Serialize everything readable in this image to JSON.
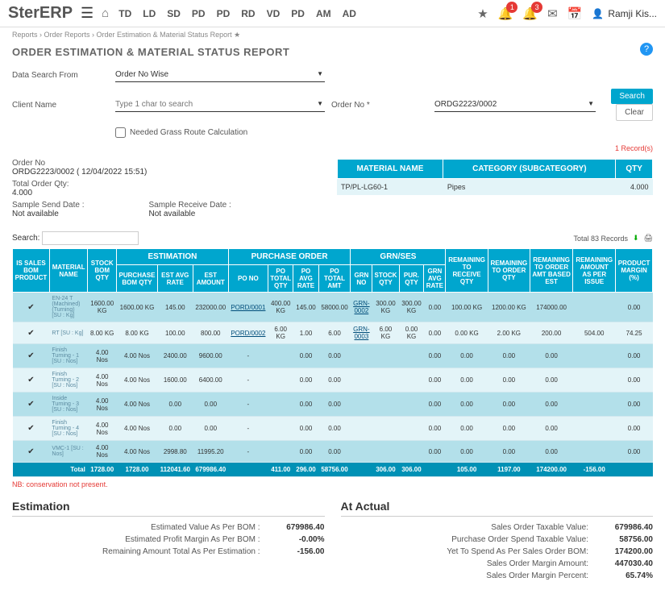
{
  "header": {
    "logo": "SterERP",
    "nav": [
      "TD",
      "LD",
      "SD",
      "PD",
      "PD",
      "RD",
      "VD",
      "PD",
      "AM",
      "AD"
    ],
    "badge1": "1",
    "badge3": "3",
    "user": "Ramji Kis..."
  },
  "breadcrumb": {
    "a": "Reports",
    "b": "Order Reports",
    "c": "Order Estimation & Material Status Report"
  },
  "title": "ORDER ESTIMATION & MATERIAL STATUS REPORT",
  "filters": {
    "searchFromLabel": "Data Search From",
    "searchFrom": "Order No Wise",
    "clientLabel": "Client Name",
    "clientPlaceholder": "Type 1 char to search",
    "orderNoLabel": "Order No *",
    "orderNo": "ORDG2223/0002",
    "checkbox": "Needed Grass Route Calculation",
    "searchBtn": "Search",
    "clearBtn": "Clear"
  },
  "info": {
    "orderNoLabel": "Order No",
    "orderNo": "ORDG2223/0002 ( 12/04/2022 15:51)",
    "totalQtyLabel": "Total Order Qty:",
    "totalQty": "4.000",
    "sendDateLabel": "Sample Send Date :",
    "sendDate": "Not available",
    "recvDateLabel": "Sample Receive Date :",
    "recvDate": "Not available",
    "recordsTop": "1 Record(s)"
  },
  "matTable": {
    "h1": "MATERIAL NAME",
    "h2": "CATEGORY (SUBCATEGORY)",
    "h3": "QTY",
    "r1c1": "TP/PL-LG60-1",
    "r1c2": "Pipes",
    "r1c3": "4.000"
  },
  "searchLabel": "Search:",
  "totalRecords": "Total 83 Records",
  "groups": {
    "g1": "ESTIMATION",
    "g2": "PURCHASE ORDER",
    "g3": "GRN/SES"
  },
  "cols": {
    "c0": "IS SALES BOM PRODUCT",
    "c1": "MATERIAL NAME",
    "c2": "STOCK BOM QTY",
    "c3": "PURCHASE BOM QTY",
    "c4": "EST AVG RATE",
    "c5": "EST AMOUNT",
    "c6": "PO NO",
    "c7": "PO TOTAL QTY",
    "c8": "PO AVG RATE",
    "c9": "PO TOTAL AMT",
    "c10": "GRN NO",
    "c11": "STOCK QTY",
    "c12": "PUR. QTY",
    "c13": "GRN AVG RATE",
    "c14": "REMAINING TO RECEIVE QTY",
    "c15": "REMAINING TO ORDER QTY",
    "c16": "REMAINING TO ORDER AMT BASED EST",
    "c17": "REMAINING AMOUNT AS PER ISSUE",
    "c18": "PRODUCT MARGIN (%)"
  },
  "rows": [
    {
      "cls": "r0",
      "mat": "EN-24 T (Machined)(Turning) [SU : Kg]",
      "c2": "1600.00 KG",
      "c3": "1600.00 KG",
      "c4": "145.00",
      "c5": "232000.00",
      "c6": "PORD/0001",
      "c7": "400.00 KG",
      "c8": "145.00",
      "c9": "58000.00",
      "c10": "GRN-0002",
      "c11": "300.00 KG",
      "c12": "300.00 KG",
      "c13": "0.00",
      "c14": "100.00 KG",
      "c15": "1200.00 KG",
      "c16": "174000.00",
      "c17": "",
      "c18": "0.00"
    },
    {
      "cls": "r1",
      "mat": "RT [SU : Kg]",
      "c2": "8.00 KG",
      "c3": "8.00 KG",
      "c4": "100.00",
      "c5": "800.00",
      "c6": "PORD/0002",
      "c7": "6.00 KG",
      "c8": "1.00",
      "c9": "6.00",
      "c10": "GRN-0003",
      "c11": "6.00 KG",
      "c12": "0.00 KG",
      "c13": "0.00",
      "c14": "0.00 KG",
      "c15": "2.00 KG",
      "c16": "200.00",
      "c17": "504.00",
      "c18": "74.25"
    },
    {
      "cls": "r2",
      "mat": "Finish Turning - 1 [SU : Nos]",
      "c2": "4.00 Nos",
      "c3": "4.00 Nos",
      "c4": "2400.00",
      "c5": "9600.00",
      "c6": "-",
      "c7": "",
      "c8": "0.00",
      "c9": "0.00",
      "c10": "",
      "c11": "",
      "c12": "",
      "c13": "0.00",
      "c14": "0.00",
      "c15": "0.00",
      "c16": "0.00",
      "c17": "",
      "c18": "0.00"
    },
    {
      "cls": "r1",
      "mat": "Finish Turning - 2 [SU : Nos]",
      "c2": "4.00 Nos",
      "c3": "4.00 Nos",
      "c4": "1600.00",
      "c5": "6400.00",
      "c6": "-",
      "c7": "",
      "c8": "0.00",
      "c9": "0.00",
      "c10": "",
      "c11": "",
      "c12": "",
      "c13": "0.00",
      "c14": "0.00",
      "c15": "0.00",
      "c16": "0.00",
      "c17": "",
      "c18": "0.00"
    },
    {
      "cls": "r2",
      "mat": "Inside Turning - 3 [SU : Nos]",
      "c2": "4.00 Nos",
      "c3": "4.00 Nos",
      "c4": "0.00",
      "c5": "0.00",
      "c6": "-",
      "c7": "",
      "c8": "0.00",
      "c9": "0.00",
      "c10": "",
      "c11": "",
      "c12": "",
      "c13": "0.00",
      "c14": "0.00",
      "c15": "0.00",
      "c16": "0.00",
      "c17": "",
      "c18": "0.00"
    },
    {
      "cls": "r1",
      "mat": "Finish Turning - 4 [SU : Nos]",
      "c2": "4.00 Nos",
      "c3": "4.00 Nos",
      "c4": "0.00",
      "c5": "0.00",
      "c6": "-",
      "c7": "",
      "c8": "0.00",
      "c9": "0.00",
      "c10": "",
      "c11": "",
      "c12": "",
      "c13": "0.00",
      "c14": "0.00",
      "c15": "0.00",
      "c16": "0.00",
      "c17": "",
      "c18": "0.00"
    },
    {
      "cls": "r2",
      "mat": "VMC-1 [SU : Nos]",
      "c2": "4.00 Nos",
      "c3": "4.00 Nos",
      "c4": "2998.80",
      "c5": "11995.20",
      "c6": "-",
      "c7": "",
      "c8": "0.00",
      "c9": "0.00",
      "c10": "",
      "c11": "",
      "c12": "",
      "c13": "0.00",
      "c14": "0.00",
      "c15": "0.00",
      "c16": "0.00",
      "c17": "",
      "c18": "0.00"
    }
  ],
  "total": {
    "label": "Total",
    "c2": "1728.00",
    "c3": "1728.00",
    "c4": "112041.60",
    "c5": "679986.40",
    "c7": "411.00",
    "c8": "296.00",
    "c9": "58756.00",
    "c11": "306.00",
    "c12": "306.00",
    "c14": "105.00",
    "c15": "1197.00",
    "c16": "174200.00",
    "c17": "-156.00"
  },
  "noteRed": "NB: conservation not present.",
  "estimation": {
    "title": "Estimation",
    "r1l": "Estimated Value As Per BOM :",
    "r1v": "679986.40",
    "r2l": "Estimated Profit Margin As Per BOM :",
    "r2v": "-0.00%",
    "r3l": "Remaining Amount Total As Per Estimation :",
    "r3v": "-156.00"
  },
  "actual": {
    "title": "At Actual",
    "r1l": "Sales Order Taxable Value:",
    "r1v": "679986.40",
    "r2l": "Purchase Order Spend Taxable Value:",
    "r2v": "58756.00",
    "r3l": "Yet To Spend As Per Sales Order BOM:",
    "r3v": "174200.00",
    "r4l": "Sales Order Margin Amount:",
    "r4v": "447030.40",
    "r5l": "Sales Order Margin Percent:",
    "r5v": "65.74%"
  }
}
